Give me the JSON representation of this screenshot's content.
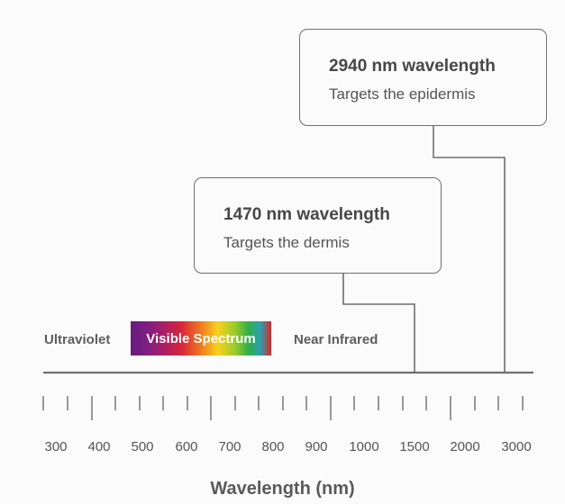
{
  "callouts": {
    "upper": {
      "title": "2940 nm wavelength",
      "subtitle": "Targets the epidermis"
    },
    "lower": {
      "title": "1470 nm wavelength",
      "subtitle": "Targets the dermis"
    }
  },
  "regions": {
    "ultraviolet": "Ultraviolet",
    "visible": "Visible Spectrum",
    "near_infrared": "Near Infrared"
  },
  "axis": {
    "title": "Wavelength (nm)",
    "tick_labels": [
      "300",
      "400",
      "500",
      "600",
      "700",
      "800",
      "900",
      "1000",
      "1500",
      "2000",
      "3000"
    ]
  },
  "colors": {
    "line": "#6f6f6f",
    "text_dark": "#474747",
    "text_muted": "#555555",
    "background": "#fbfbfb"
  }
}
